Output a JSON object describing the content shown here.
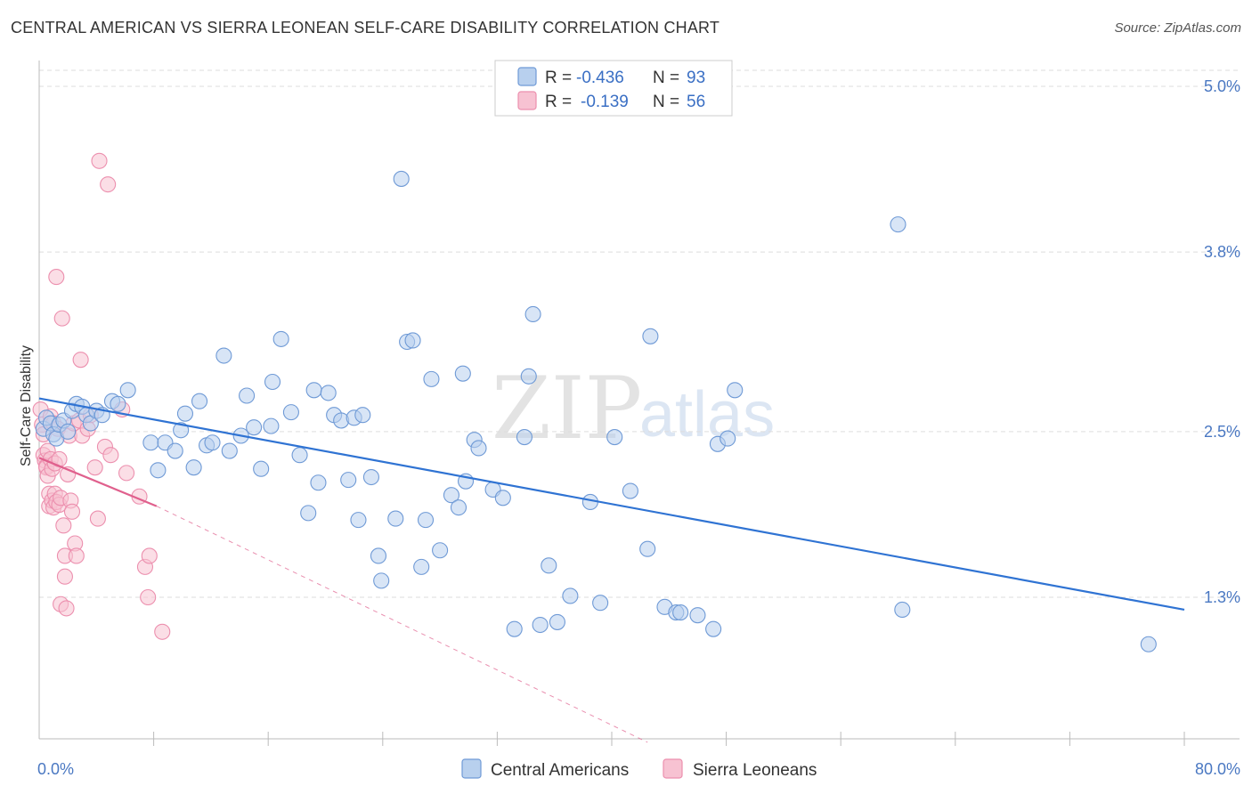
{
  "header": {
    "title": "CENTRAL AMERICAN VS SIERRA LEONEAN SELF-CARE DISABILITY CORRELATION CHART",
    "source": "Source: ZipAtlas.com"
  },
  "watermark": {
    "zip": "ZIP",
    "atlas": "atlas"
  },
  "colors": {
    "blue_fill": "#b8d0ee",
    "blue_stroke": "#6f9ad6",
    "blue_line": "#2f73d3",
    "pink_fill": "#f7c2d2",
    "pink_stroke": "#ec8fae",
    "pink_line": "#e0608d",
    "grid": "#dddddd",
    "tick_label": "#4a78c2"
  },
  "legend": {
    "rows": [
      {
        "r_label": "R =",
        "r_value": "-0.436",
        "n_label": "N =",
        "n_value": "93"
      },
      {
        "r_label": "R =",
        "r_value": "-0.139",
        "n_label": "N =",
        "n_value": "56"
      }
    ]
  },
  "bottom_legend": {
    "items": [
      {
        "label": "Central Americans"
      },
      {
        "label": "Sierra Leoneans"
      }
    ]
  },
  "chart_data": {
    "type": "scatter",
    "title": "CENTRAL AMERICAN VS SIERRA LEONEAN SELF-CARE DISABILITY CORRELATION CHART",
    "xlabel": "",
    "ylabel": "Self-Care Disability",
    "xlim": [
      0,
      80
    ],
    "ylim": [
      0.25,
      5.2
    ],
    "x_tick_labels": [
      {
        "value": 0,
        "label": "0.0%"
      },
      {
        "value": 80,
        "label": "80.0%"
      }
    ],
    "x_minor_ticks": [
      8,
      16,
      24,
      32,
      40,
      48,
      56,
      64,
      72
    ],
    "y_ticks": [
      {
        "value": 5.0,
        "label": "5.0%"
      },
      {
        "value": 3.8,
        "label": "3.8%"
      },
      {
        "value": 2.5,
        "label": "2.5%"
      },
      {
        "value": 1.3,
        "label": "1.3%"
      }
    ],
    "grid": true,
    "legend_position": "top-center",
    "series": [
      {
        "name": "Central Americans",
        "R": -0.436,
        "N": 93,
        "trend": {
          "x": [
            0,
            80
          ],
          "y": [
            2.74,
            1.21
          ]
        },
        "points": [
          [
            0.3,
            2.52
          ],
          [
            0.5,
            2.6
          ],
          [
            0.8,
            2.56
          ],
          [
            1.0,
            2.48
          ],
          [
            1.2,
            2.45
          ],
          [
            1.4,
            2.55
          ],
          [
            1.7,
            2.58
          ],
          [
            2.0,
            2.5
          ],
          [
            2.3,
            2.65
          ],
          [
            2.6,
            2.7
          ],
          [
            3.0,
            2.68
          ],
          [
            3.3,
            2.62
          ],
          [
            3.6,
            2.56
          ],
          [
            4.0,
            2.65
          ],
          [
            4.4,
            2.62
          ],
          [
            5.1,
            2.72
          ],
          [
            5.5,
            2.7
          ],
          [
            6.2,
            2.8
          ],
          [
            7.8,
            2.42
          ],
          [
            8.3,
            2.22
          ],
          [
            8.8,
            2.42
          ],
          [
            9.5,
            2.36
          ],
          [
            9.9,
            2.51
          ],
          [
            10.2,
            2.63
          ],
          [
            10.8,
            2.24
          ],
          [
            11.2,
            2.72
          ],
          [
            11.7,
            2.4
          ],
          [
            12.1,
            2.42
          ],
          [
            12.9,
            3.05
          ],
          [
            13.3,
            2.36
          ],
          [
            14.1,
            2.47
          ],
          [
            14.5,
            2.76
          ],
          [
            15.0,
            2.53
          ],
          [
            15.5,
            2.23
          ],
          [
            16.2,
            2.54
          ],
          [
            16.3,
            2.86
          ],
          [
            16.9,
            3.17
          ],
          [
            17.6,
            2.64
          ],
          [
            18.2,
            2.33
          ],
          [
            18.8,
            1.91
          ],
          [
            19.2,
            2.8
          ],
          [
            19.5,
            2.13
          ],
          [
            20.2,
            2.78
          ],
          [
            20.6,
            2.62
          ],
          [
            21.1,
            2.58
          ],
          [
            21.6,
            2.15
          ],
          [
            22.0,
            2.6
          ],
          [
            22.3,
            1.86
          ],
          [
            22.6,
            2.62
          ],
          [
            23.2,
            2.17
          ],
          [
            23.7,
            1.6
          ],
          [
            23.9,
            1.42
          ],
          [
            24.9,
            1.87
          ],
          [
            25.3,
            4.33
          ],
          [
            25.7,
            3.15
          ],
          [
            26.1,
            3.16
          ],
          [
            26.7,
            1.52
          ],
          [
            27.0,
            1.86
          ],
          [
            27.4,
            2.88
          ],
          [
            28.0,
            1.64
          ],
          [
            28.8,
            2.04
          ],
          [
            29.3,
            1.95
          ],
          [
            29.6,
            2.92
          ],
          [
            29.8,
            2.14
          ],
          [
            30.4,
            2.44
          ],
          [
            30.7,
            2.38
          ],
          [
            31.7,
            2.08
          ],
          [
            32.4,
            2.02
          ],
          [
            33.2,
            1.07
          ],
          [
            33.9,
            2.46
          ],
          [
            34.2,
            2.9
          ],
          [
            34.5,
            3.35
          ],
          [
            35.0,
            1.1
          ],
          [
            35.6,
            1.53
          ],
          [
            36.2,
            1.12
          ],
          [
            37.1,
            1.31
          ],
          [
            38.5,
            1.99
          ],
          [
            39.2,
            1.26
          ],
          [
            40.2,
            2.46
          ],
          [
            41.3,
            2.07
          ],
          [
            42.5,
            1.65
          ],
          [
            42.7,
            3.19
          ],
          [
            43.7,
            1.23
          ],
          [
            44.5,
            1.19
          ],
          [
            44.8,
            1.19
          ],
          [
            46.0,
            1.17
          ],
          [
            47.1,
            1.07
          ],
          [
            47.4,
            2.41
          ],
          [
            48.1,
            2.45
          ],
          [
            48.6,
            2.8
          ],
          [
            60.0,
            4.0
          ],
          [
            60.3,
            1.21
          ],
          [
            77.5,
            0.96
          ]
        ]
      },
      {
        "name": "Sierra Leoneans",
        "R": -0.139,
        "N": 56,
        "trend": {
          "x": [
            0,
            8.2
          ],
          "y": [
            2.31,
            1.96
          ]
        },
        "trend_extension": {
          "x": [
            8.2,
            42.5
          ],
          "y": [
            1.96,
            0.25
          ]
        },
        "points": [
          [
            0.1,
            2.66
          ],
          [
            0.2,
            2.55
          ],
          [
            0.3,
            2.48
          ],
          [
            0.3,
            2.33
          ],
          [
            0.4,
            2.29
          ],
          [
            0.5,
            2.25
          ],
          [
            0.5,
            2.24
          ],
          [
            0.6,
            2.36
          ],
          [
            0.6,
            2.18
          ],
          [
            0.7,
            2.05
          ],
          [
            0.7,
            1.96
          ],
          [
            0.8,
            2.61
          ],
          [
            0.8,
            2.3
          ],
          [
            0.9,
            2.23
          ],
          [
            0.9,
            2.0
          ],
          [
            1.0,
            1.95
          ],
          [
            1.0,
            2.56
          ],
          [
            1.1,
            2.27
          ],
          [
            1.1,
            2.05
          ],
          [
            1.2,
            1.99
          ],
          [
            1.2,
            3.62
          ],
          [
            1.3,
            2.52
          ],
          [
            1.4,
            2.3
          ],
          [
            1.4,
            1.97
          ],
          [
            1.5,
            2.02
          ],
          [
            1.5,
            1.25
          ],
          [
            1.6,
            3.32
          ],
          [
            1.7,
            1.82
          ],
          [
            1.8,
            1.6
          ],
          [
            1.8,
            1.45
          ],
          [
            1.9,
            1.22
          ],
          [
            2.0,
            2.19
          ],
          [
            2.1,
            2.47
          ],
          [
            2.2,
            2.0
          ],
          [
            2.3,
            1.92
          ],
          [
            2.4,
            2.56
          ],
          [
            2.5,
            1.69
          ],
          [
            2.6,
            1.6
          ],
          [
            2.8,
            2.58
          ],
          [
            2.9,
            3.02
          ],
          [
            3.0,
            2.47
          ],
          [
            3.4,
            2.52
          ],
          [
            3.6,
            2.62
          ],
          [
            3.9,
            2.24
          ],
          [
            4.1,
            1.87
          ],
          [
            4.2,
            4.46
          ],
          [
            4.6,
            2.39
          ],
          [
            4.8,
            4.29
          ],
          [
            5.0,
            2.33
          ],
          [
            5.8,
            2.66
          ],
          [
            6.1,
            2.2
          ],
          [
            7.0,
            2.03
          ],
          [
            7.4,
            1.52
          ],
          [
            7.7,
            1.6
          ],
          [
            7.6,
            1.3
          ],
          [
            8.6,
            1.05
          ]
        ]
      }
    ]
  }
}
